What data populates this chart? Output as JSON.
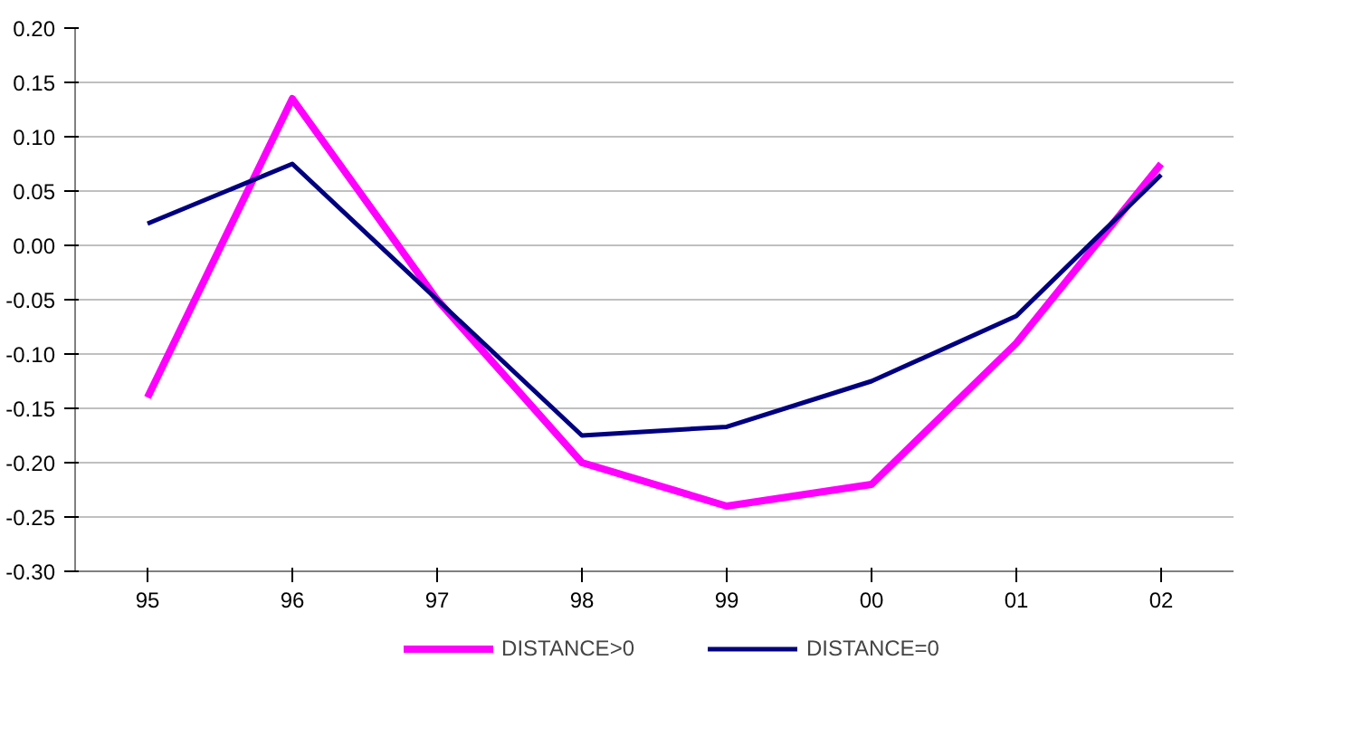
{
  "chart_data": {
    "type": "line",
    "categories": [
      "95",
      "96",
      "97",
      "98",
      "99",
      "00",
      "01",
      "02"
    ],
    "series": [
      {
        "name": "DISTANCE>0",
        "color": "#ff00ff",
        "values": [
          -0.14,
          0.135,
          -0.05,
          -0.2,
          -0.24,
          -0.22,
          -0.09,
          0.075
        ]
      },
      {
        "name": "DISTANCE=0",
        "color": "#000080",
        "values": [
          0.02,
          0.075,
          -0.05,
          -0.175,
          -0.167,
          -0.125,
          -0.065,
          0.065
        ]
      }
    ],
    "ylim": [
      -0.3,
      0.2
    ],
    "yticks": [
      {
        "value": -0.3,
        "label": "-0.30"
      },
      {
        "value": -0.25,
        "label": "-0.25"
      },
      {
        "value": -0.2,
        "label": "-0.20"
      },
      {
        "value": -0.15,
        "label": "-0.15"
      },
      {
        "value": -0.1,
        "label": "-0.10"
      },
      {
        "value": -0.05,
        "label": "-0.05"
      },
      {
        "value": 0,
        "label": "0.00"
      },
      {
        "value": 0.05,
        "label": "0.05"
      },
      {
        "value": 0.1,
        "label": "0.10"
      },
      {
        "value": 0.15,
        "label": "0.15"
      },
      {
        "value": 0.2,
        "label": "0.20"
      }
    ],
    "grid": "y",
    "legend": "bottom",
    "marker": "none",
    "line_style": "solid"
  }
}
